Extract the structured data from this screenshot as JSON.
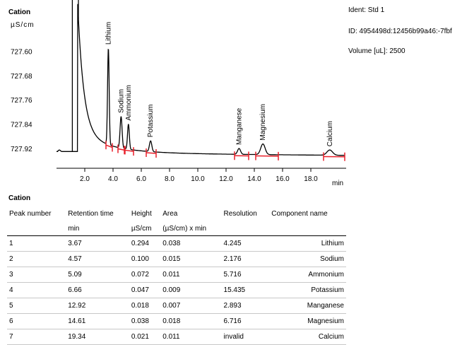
{
  "chart_data": {
    "type": "line",
    "title": "Cation",
    "ylabel": "µS/cm",
    "xlabel": "min",
    "xlim": [
      0,
      20.5
    ],
    "ylim": [
      727.985,
      727.455
    ],
    "y_inverted": true,
    "xticks": [
      "2.0",
      "4.0",
      "6.0",
      "8.0",
      "10.0",
      "12.0",
      "14.0",
      "16.0",
      "18.0"
    ],
    "yticks": [
      "727.60",
      "727.68",
      "727.76",
      "727.84",
      "727.92"
    ],
    "peaks": [
      {
        "name": "Lithium",
        "x": 3.67,
        "y": 727.59
      },
      {
        "name": "Sodium",
        "x": 4.57,
        "y": 727.815
      },
      {
        "name": "Ammonium",
        "x": 5.09,
        "y": 727.84
      },
      {
        "name": "Potassium",
        "x": 6.66,
        "y": 727.895
      },
      {
        "name": "Manganese",
        "x": 12.92,
        "y": 727.92
      },
      {
        "name": "Magnesium",
        "x": 14.61,
        "y": 727.905
      },
      {
        "name": "Calcium",
        "x": 19.34,
        "y": 727.925
      }
    ]
  },
  "meta": {
    "ident": "Ident: Std 1",
    "id": "ID: 4954498d:12456b99a46:-7fbf",
    "volume": "Volume [uL]: 2500"
  },
  "table": {
    "title": "Cation",
    "headers": [
      "Peak number",
      "Retention time",
      "Height",
      "Area",
      "Resolution",
      "Component name"
    ],
    "units": [
      "",
      "min",
      "µS/cm",
      "(µS/cm) x min",
      "",
      ""
    ],
    "rows": [
      [
        "1",
        "3.67",
        "0.294",
        "0.038",
        "4.245",
        "Lithium"
      ],
      [
        "2",
        "4.57",
        "0.100",
        "0.015",
        "2.176",
        "Sodium"
      ],
      [
        "3",
        "5.09",
        "0.072",
        "0.011",
        "5.716",
        "Ammonium"
      ],
      [
        "4",
        "6.66",
        "0.047",
        "0.009",
        "15.435",
        "Potassium"
      ],
      [
        "5",
        "12.92",
        "0.018",
        "0.007",
        "2.893",
        "Manganese"
      ],
      [
        "6",
        "14.61",
        "0.038",
        "0.018",
        "6.716",
        "Magnesium"
      ],
      [
        "7",
        "19.34",
        "0.021",
        "0.011",
        "invalid",
        "Calcium"
      ]
    ]
  },
  "colors": {
    "trace": "#000000",
    "markers": "#e8202a"
  }
}
